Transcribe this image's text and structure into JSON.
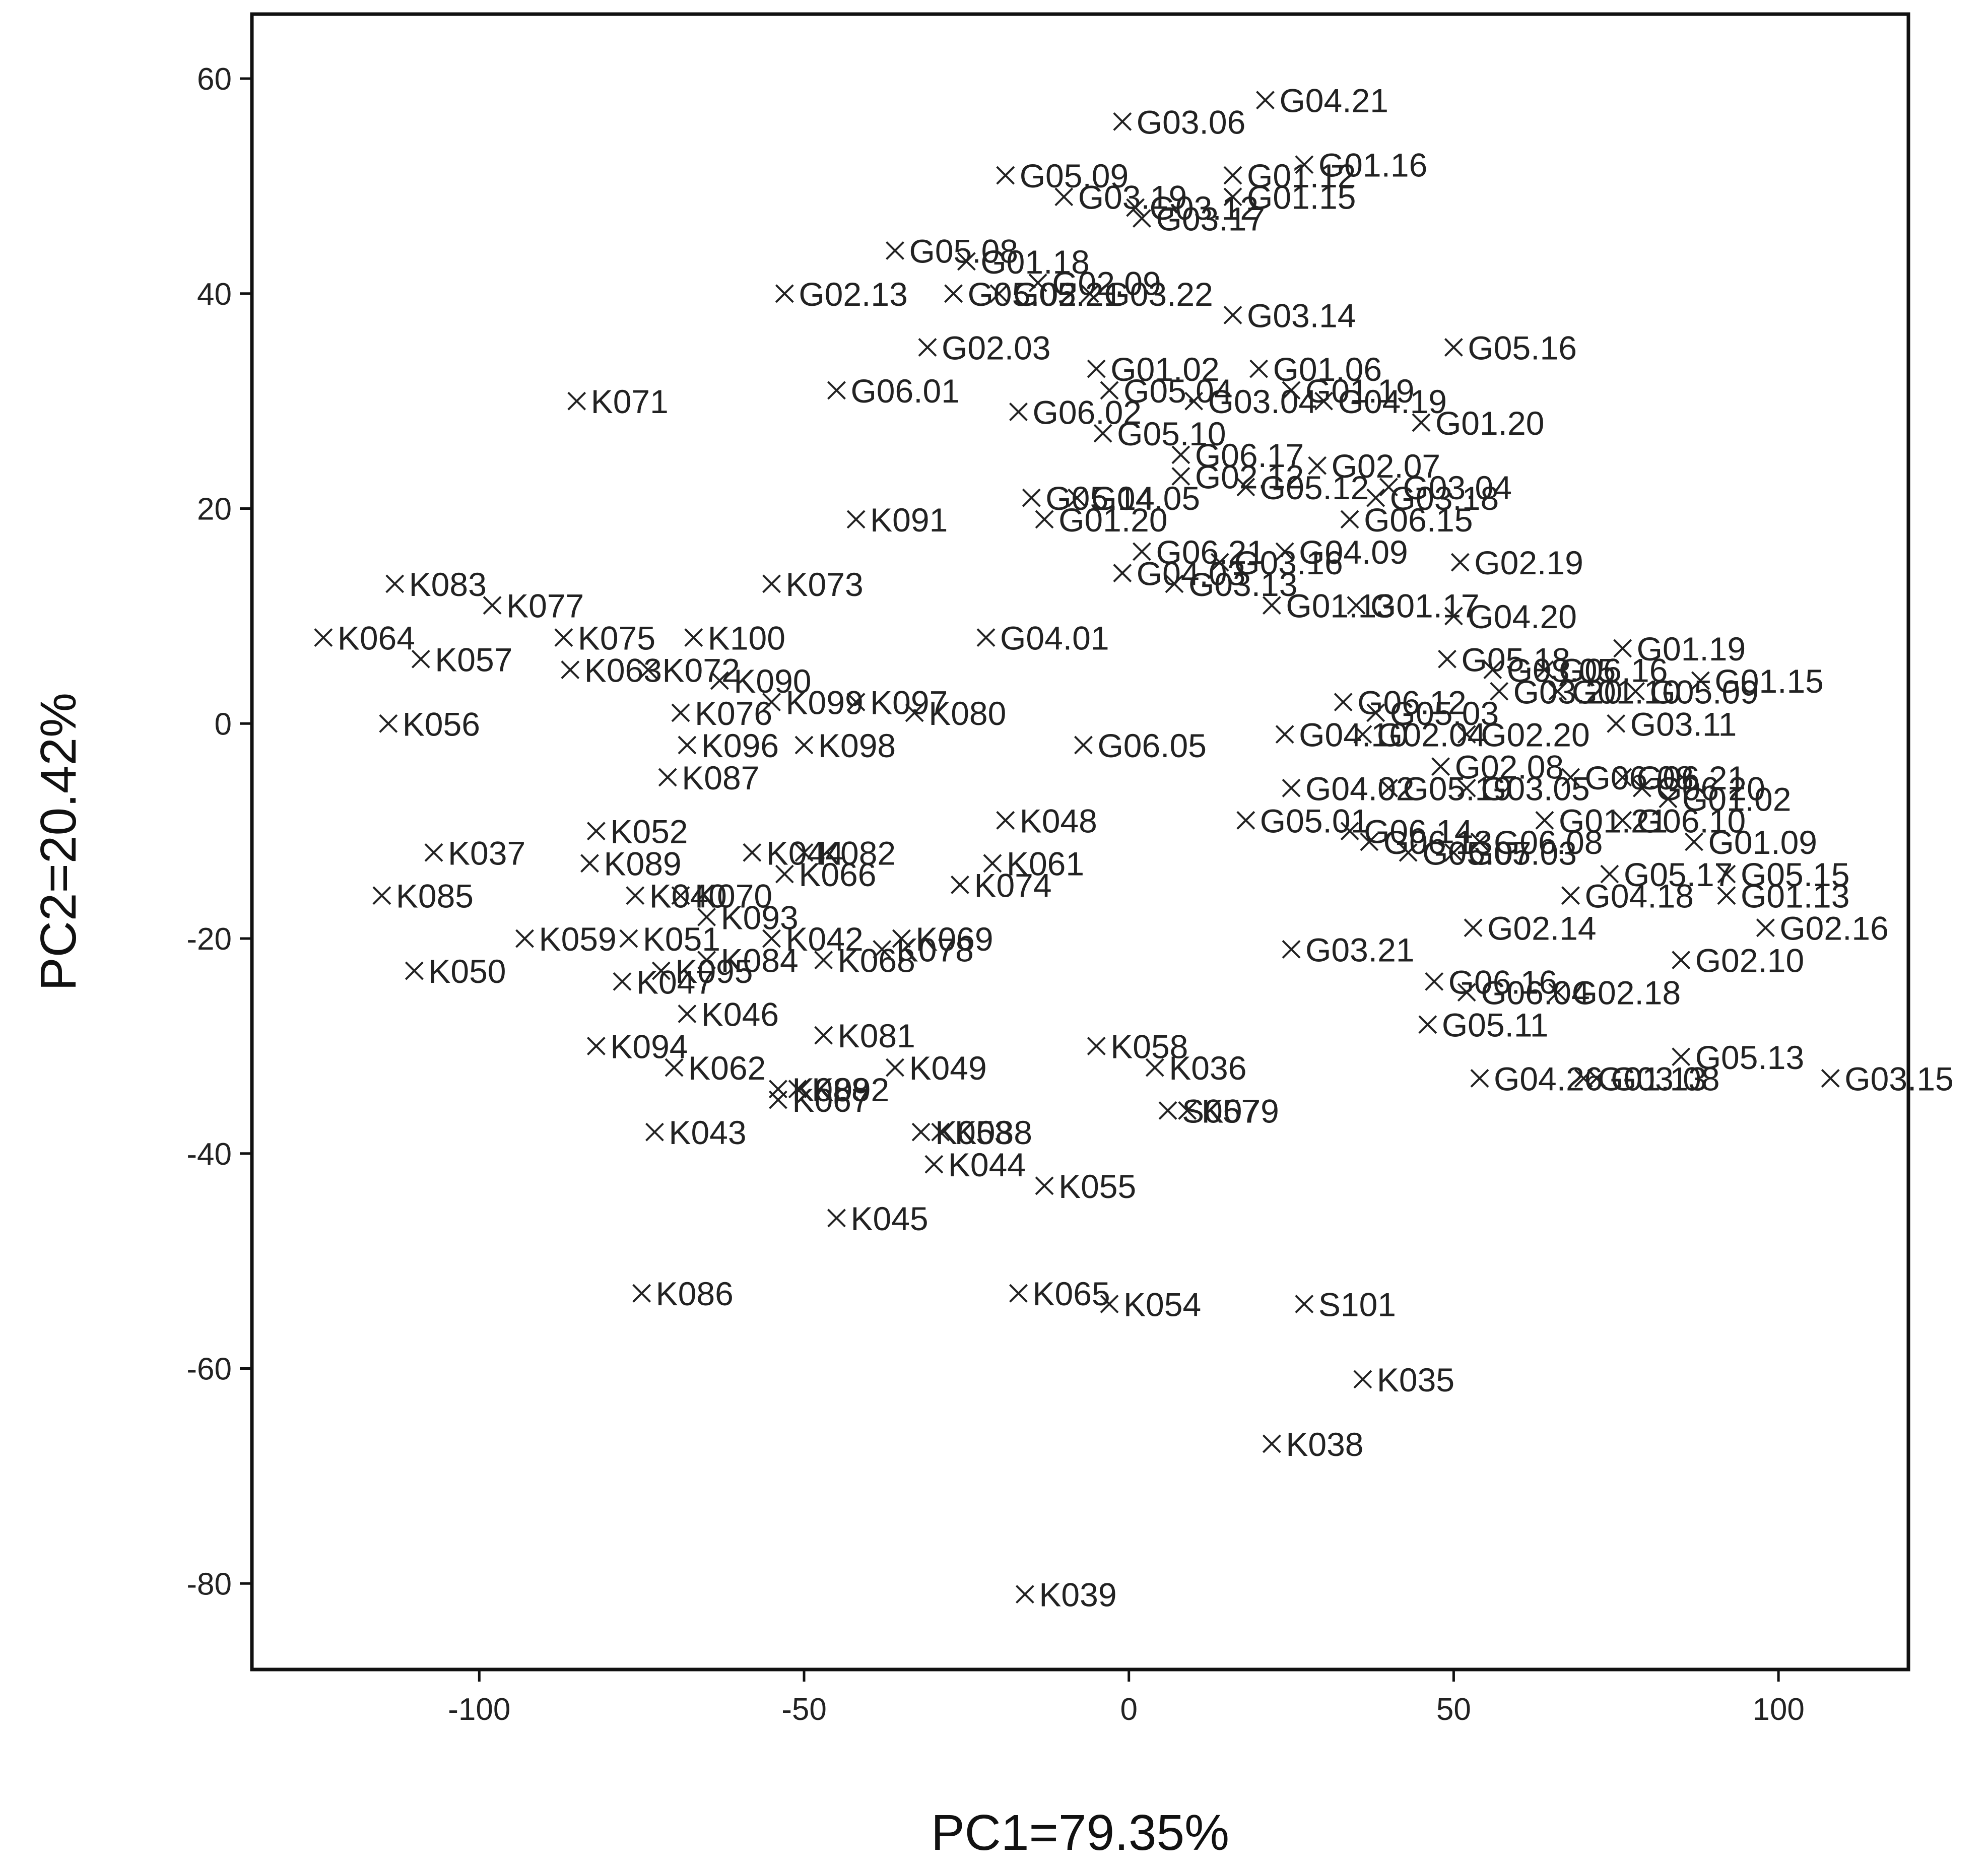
{
  "chart_data": {
    "type": "scatter",
    "title": "",
    "xlabel": "PC1=79.35%",
    "ylabel": "PC2=20.42%",
    "xlim": [
      -135,
      120
    ],
    "ylim": [
      -88,
      66
    ],
    "xticks": [
      -100,
      -50,
      0,
      50,
      100
    ],
    "yticks": [
      60,
      40,
      20,
      0,
      -20,
      -40,
      -60,
      -80
    ],
    "grid": false,
    "legend": "none",
    "marker": "x",
    "points": [
      {
        "label": "G04.21",
        "x": 21,
        "y": 58
      },
      {
        "label": "G03.06",
        "x": -1,
        "y": 56
      },
      {
        "label": "G01.16",
        "x": 27,
        "y": 52
      },
      {
        "label": "G01.12",
        "x": 16,
        "y": 51
      },
      {
        "label": "G05.09",
        "x": -19,
        "y": 51
      },
      {
        "label": "G01.15",
        "x": 16,
        "y": 49
      },
      {
        "label": "G03.19",
        "x": -10,
        "y": 49
      },
      {
        "label": "G03.12",
        "x": 1,
        "y": 48
      },
      {
        "label": "G03.17",
        "x": 2,
        "y": 47
      },
      {
        "label": "G05.08",
        "x": -36,
        "y": 44
      },
      {
        "label": "G01.18",
        "x": -25,
        "y": 43
      },
      {
        "label": "G02.09",
        "x": -14,
        "y": 41
      },
      {
        "label": "G02.13",
        "x": -53,
        "y": 40
      },
      {
        "label": "G05.02",
        "x": -27,
        "y": 40
      },
      {
        "label": "G05.21",
        "x": -20,
        "y": 40
      },
      {
        "label": "G03.22",
        "x": -6,
        "y": 40
      },
      {
        "label": "G03.14",
        "x": 16,
        "y": 38
      },
      {
        "label": "G02.03",
        "x": -31,
        "y": 35
      },
      {
        "label": "G05.16",
        "x": 50,
        "y": 35
      },
      {
        "label": "G01.02",
        "x": -5,
        "y": 33
      },
      {
        "label": "G01.06",
        "x": 20,
        "y": 33
      },
      {
        "label": "G01.19",
        "x": 25,
        "y": 31
      },
      {
        "label": "G05.04",
        "x": -3,
        "y": 31
      },
      {
        "label": "G03.04",
        "x": 10,
        "y": 30
      },
      {
        "label": "G04.19",
        "x": 30,
        "y": 30
      },
      {
        "label": "G06.01",
        "x": -45,
        "y": 31
      },
      {
        "label": "K071",
        "x": -85,
        "y": 30
      },
      {
        "label": "G06.02",
        "x": -17,
        "y": 29
      },
      {
        "label": "G01.20",
        "x": 45,
        "y": 28
      },
      {
        "label": "G05.10",
        "x": -4,
        "y": 27
      },
      {
        "label": "G06.17",
        "x": 8,
        "y": 25
      },
      {
        "label": "G02.07",
        "x": 29,
        "y": 24
      },
      {
        "label": "G02.12",
        "x": 8,
        "y": 23
      },
      {
        "label": "G03.04",
        "x": 40,
        "y": 22
      },
      {
        "label": "G05.12",
        "x": 18,
        "y": 22
      },
      {
        "label": "G03.18",
        "x": 38,
        "y": 21
      },
      {
        "label": "G05.14",
        "x": -15,
        "y": 21
      },
      {
        "label": "G04.05",
        "x": -8,
        "y": 21
      },
      {
        "label": "G01.20",
        "x": -13,
        "y": 19
      },
      {
        "label": "G06.15",
        "x": 34,
        "y": 19
      },
      {
        "label": "K091",
        "x": -42,
        "y": 19
      },
      {
        "label": "G02.19",
        "x": 51,
        "y": 15
      },
      {
        "label": "G06.21",
        "x": 2,
        "y": 16
      },
      {
        "label": "G04.09",
        "x": 24,
        "y": 16
      },
      {
        "label": "G03.16",
        "x": 14,
        "y": 15
      },
      {
        "label": "G04.03",
        "x": -1,
        "y": 14
      },
      {
        "label": "G03.13",
        "x": 7,
        "y": 13
      },
      {
        "label": "K083",
        "x": -113,
        "y": 13
      },
      {
        "label": "K073",
        "x": -55,
        "y": 13
      },
      {
        "label": "K077",
        "x": -98,
        "y": 11
      },
      {
        "label": "G01.13",
        "x": 22,
        "y": 11
      },
      {
        "label": "G01.17",
        "x": 35,
        "y": 11
      },
      {
        "label": "G04.20",
        "x": 50,
        "y": 10
      },
      {
        "label": "K064",
        "x": -124,
        "y": 8
      },
      {
        "label": "K075",
        "x": -87,
        "y": 8
      },
      {
        "label": "K100",
        "x": -67,
        "y": 8
      },
      {
        "label": "G04.01",
        "x": -22,
        "y": 8
      },
      {
        "label": "G01.19",
        "x": 76,
        "y": 7
      },
      {
        "label": "K057",
        "x": -109,
        "y": 6
      },
      {
        "label": "G05.18",
        "x": 49,
        "y": 6
      },
      {
        "label": "G03.05",
        "x": 56,
        "y": 5
      },
      {
        "label": "G06.16",
        "x": 64,
        "y": 5
      },
      {
        "label": "K063",
        "x": -86,
        "y": 5
      },
      {
        "label": "K072",
        "x": -74,
        "y": 5
      },
      {
        "label": "K090",
        "x": -63,
        "y": 4
      },
      {
        "label": "G01.15",
        "x": 88,
        "y": 4
      },
      {
        "label": "G03.20",
        "x": 57,
        "y": 3
      },
      {
        "label": "G01.10",
        "x": 66,
        "y": 3
      },
      {
        "label": "G05.09",
        "x": 78,
        "y": 3
      },
      {
        "label": "K099",
        "x": -55,
        "y": 2
      },
      {
        "label": "K097",
        "x": -42,
        "y": 2
      },
      {
        "label": "G06.12",
        "x": 33,
        "y": 2
      },
      {
        "label": "G05.03",
        "x": 38,
        "y": 1
      },
      {
        "label": "K080",
        "x": -33,
        "y": 1
      },
      {
        "label": "K076",
        "x": -69,
        "y": 1
      },
      {
        "label": "K056",
        "x": -114,
        "y": 0
      },
      {
        "label": "G03.11",
        "x": 75,
        "y": 0
      },
      {
        "label": "G02.20",
        "x": 52,
        "y": -1
      },
      {
        "label": "G04.10",
        "x": 24,
        "y": -1
      },
      {
        "label": "G02.04",
        "x": 36,
        "y": -1
      },
      {
        "label": "K096",
        "x": -68,
        "y": -2
      },
      {
        "label": "K098",
        "x": -50,
        "y": -2
      },
      {
        "label": "G06.05",
        "x": -7,
        "y": -2
      },
      {
        "label": "G02.08",
        "x": 48,
        "y": -4
      },
      {
        "label": "G06.08",
        "x": 68,
        "y": -5
      },
      {
        "label": "G06.21",
        "x": 76,
        "y": -5
      },
      {
        "label": "K087",
        "x": -71,
        "y": -5
      },
      {
        "label": "G04.02",
        "x": 25,
        "y": -6
      },
      {
        "label": "G05.19",
        "x": 40,
        "y": -6
      },
      {
        "label": "G03.05",
        "x": 52,
        "y": -6
      },
      {
        "label": "G06.20",
        "x": 79,
        "y": -6
      },
      {
        "label": "G01.02",
        "x": 83,
        "y": -7
      },
      {
        "label": "K048",
        "x": -19,
        "y": -9
      },
      {
        "label": "G05.01",
        "x": 18,
        "y": -9
      },
      {
        "label": "G01.21",
        "x": 64,
        "y": -9
      },
      {
        "label": "G06.10",
        "x": 76,
        "y": -9
      },
      {
        "label": "G06.14",
        "x": 34,
        "y": -10
      },
      {
        "label": "G06.13",
        "x": 37,
        "y": -11
      },
      {
        "label": "K052",
        "x": -82,
        "y": -10
      },
      {
        "label": "G06.08",
        "x": 54,
        "y": -11
      },
      {
        "label": "G01.09",
        "x": 87,
        "y": -11
      },
      {
        "label": "K037",
        "x": -107,
        "y": -12
      },
      {
        "label": "G05.07",
        "x": 43,
        "y": -12
      },
      {
        "label": "G05.03",
        "x": 50,
        "y": -12
      },
      {
        "label": "K044",
        "x": -58,
        "y": -12
      },
      {
        "label": "K082",
        "x": -50,
        "y": -12
      },
      {
        "label": "K089",
        "x": -83,
        "y": -13
      },
      {
        "label": "K061",
        "x": -21,
        "y": -13
      },
      {
        "label": "K066",
        "x": -53,
        "y": -14
      },
      {
        "label": "K074",
        "x": -26,
        "y": -15
      },
      {
        "label": "G05.17",
        "x": 74,
        "y": -14
      },
      {
        "label": "G05.15",
        "x": 92,
        "y": -14
      },
      {
        "label": "K085",
        "x": -115,
        "y": -16
      },
      {
        "label": "K040",
        "x": -76,
        "y": -16
      },
      {
        "label": "K070",
        "x": -69,
        "y": -16
      },
      {
        "label": "G04.18",
        "x": 68,
        "y": -16
      },
      {
        "label": "G01.13",
        "x": 92,
        "y": -16
      },
      {
        "label": "G02.16",
        "x": 98,
        "y": -19
      },
      {
        "label": "G02.14",
        "x": 53,
        "y": -19
      },
      {
        "label": "K093",
        "x": -65,
        "y": -18
      },
      {
        "label": "K059",
        "x": -93,
        "y": -20
      },
      {
        "label": "K051",
        "x": -77,
        "y": -20
      },
      {
        "label": "K042",
        "x": -55,
        "y": -20
      },
      {
        "label": "K069",
        "x": -35,
        "y": -20
      },
      {
        "label": "K078",
        "x": -38,
        "y": -21
      },
      {
        "label": "K084",
        "x": -65,
        "y": -22
      },
      {
        "label": "K068",
        "x": -47,
        "y": -22
      },
      {
        "label": "G03.21",
        "x": 25,
        "y": -21
      },
      {
        "label": "G02.10",
        "x": 85,
        "y": -22
      },
      {
        "label": "K095",
        "x": -72,
        "y": -23
      },
      {
        "label": "K050",
        "x": -110,
        "y": -23
      },
      {
        "label": "K047",
        "x": -78,
        "y": -24
      },
      {
        "label": "G06.16",
        "x": 47,
        "y": -24
      },
      {
        "label": "G06.04",
        "x": 52,
        "y": -25
      },
      {
        "label": "G02.18",
        "x": 66,
        "y": -25
      },
      {
        "label": "K046",
        "x": -68,
        "y": -27
      },
      {
        "label": "G05.11",
        "x": 46,
        "y": -28
      },
      {
        "label": "K081",
        "x": -47,
        "y": -29
      },
      {
        "label": "K094",
        "x": -82,
        "y": -30
      },
      {
        "label": "K058",
        "x": -5,
        "y": -30
      },
      {
        "label": "G05.13",
        "x": 85,
        "y": -31
      },
      {
        "label": "K036",
        "x": 4,
        "y": -32
      },
      {
        "label": "K062",
        "x": -70,
        "y": -32
      },
      {
        "label": "K049",
        "x": -36,
        "y": -32
      },
      {
        "label": "G04.26",
        "x": 54,
        "y": -33
      },
      {
        "label": "G01.13",
        "x": 70,
        "y": -33
      },
      {
        "label": "G03.08",
        "x": 72,
        "y": -33
      },
      {
        "label": "G03.15",
        "x": 108,
        "y": -33
      },
      {
        "label": "K092",
        "x": -51,
        "y": -34
      },
      {
        "label": "K088",
        "x": -54,
        "y": -34
      },
      {
        "label": "K067",
        "x": -54,
        "y": -35
      },
      {
        "label": "S057",
        "x": 6,
        "y": -36
      },
      {
        "label": "K079",
        "x": 9,
        "y": -36
      },
      {
        "label": "K053",
        "x": -32,
        "y": -38
      },
      {
        "label": "K088",
        "x": -29,
        "y": -38
      },
      {
        "label": "K043",
        "x": -73,
        "y": -38
      },
      {
        "label": "K044",
        "x": -30,
        "y": -41
      },
      {
        "label": "K055",
        "x": -13,
        "y": -43
      },
      {
        "label": "K045",
        "x": -45,
        "y": -46
      },
      {
        "label": "K086",
        "x": -75,
        "y": -53
      },
      {
        "label": "K065",
        "x": -17,
        "y": -53
      },
      {
        "label": "K054",
        "x": -3,
        "y": -54
      },
      {
        "label": "S101",
        "x": 27,
        "y": -54
      },
      {
        "label": "K035",
        "x": 36,
        "y": -61
      },
      {
        "label": "K038",
        "x": 22,
        "y": -67
      },
      {
        "label": "K039",
        "x": -16,
        "y": -81
      }
    ]
  }
}
